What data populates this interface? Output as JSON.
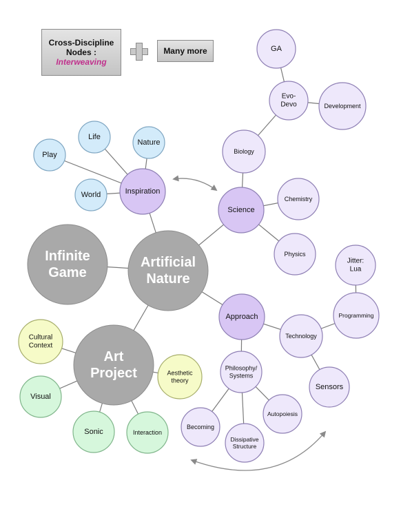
{
  "legend": {
    "cross_line1": "Cross-Discipline",
    "cross_line2": "Nodes :",
    "cross_accent": "Interweaving",
    "many_more": "Many more"
  },
  "colors": {
    "gray_fill": "#a9a9a9",
    "gray_stroke": "#8c8c8c",
    "purple_hub": "#d8c6f4",
    "purple_light": "#eee8fb",
    "purple_stroke": "#8e7fb4",
    "blue": "#d3ebfa",
    "blue_stroke": "#7fa6c2",
    "green": "#d6f7dc",
    "green_stroke": "#7fb58a",
    "yellow": "#f6fbc8",
    "yellow_stroke": "#a6ad6a",
    "accent": "#c0308c"
  },
  "nodes": {
    "infinite_game": [
      "Infinite",
      "Game"
    ],
    "artificial_nature": [
      "Artificial",
      "Nature"
    ],
    "art_project": [
      "Art",
      "Project"
    ],
    "inspiration": [
      "Inspiration"
    ],
    "play": [
      "Play"
    ],
    "life": [
      "Life"
    ],
    "nature": [
      "Nature"
    ],
    "world": [
      "World"
    ],
    "science": [
      "Science"
    ],
    "biology": [
      "Biology"
    ],
    "evo_devo": [
      "Evo-",
      "Devo"
    ],
    "ga": [
      "GA"
    ],
    "development": [
      "Development"
    ],
    "chemistry": [
      "Chemistry"
    ],
    "physics": [
      "Physics"
    ],
    "approach": [
      "Approach"
    ],
    "technology": [
      "Technology"
    ],
    "programming": [
      "Programming"
    ],
    "jitter_lua": [
      "Jitter:",
      "Lua"
    ],
    "sensors": [
      "Sensors"
    ],
    "philosophy": [
      "Philosophy/",
      "Systems"
    ],
    "becoming": [
      "Becoming"
    ],
    "dissipative": [
      "Dissipative",
      "Structure"
    ],
    "autopoiesis": [
      "Autopoiesis"
    ],
    "cultural_context": [
      "Cultural",
      "Context"
    ],
    "aesthetic_theory": [
      "Aesthetic",
      "theory"
    ],
    "visual": [
      "Visual"
    ],
    "sonic": [
      "Sonic"
    ],
    "interaction": [
      "Interaction"
    ]
  }
}
